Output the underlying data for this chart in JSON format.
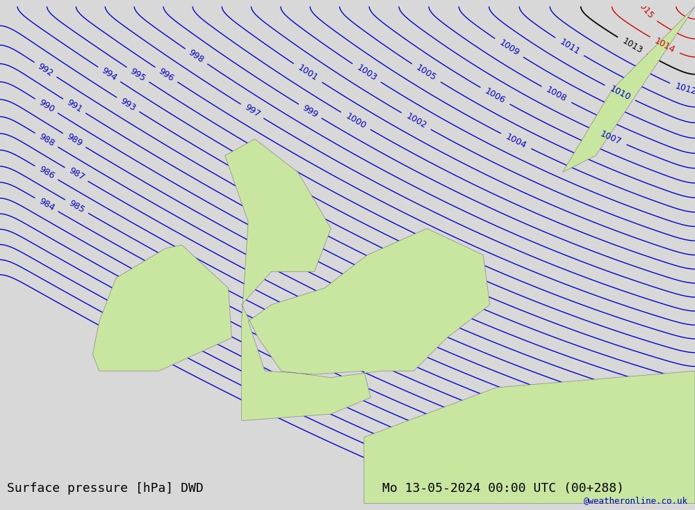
{
  "title_left": "Surface pressure [hPa] DWD",
  "title_right": "Mo 13-05-2024 00:00 UTC (00+288)",
  "credit": "@weatheronline.co.uk",
  "bg_color": "#d8d8d8",
  "land_color": "#c8e6a0",
  "coast_color": "#888888",
  "blue_isobar_color": "#0000cc",
  "black_isobar_color": "#000000",
  "red_isobar_color": "#cc0000",
  "isobar_linewidth": 1.0,
  "label_fontsize": 9,
  "title_fontsize": 13,
  "credit_fontsize": 9,
  "figsize": [
    10.0,
    7.33
  ]
}
